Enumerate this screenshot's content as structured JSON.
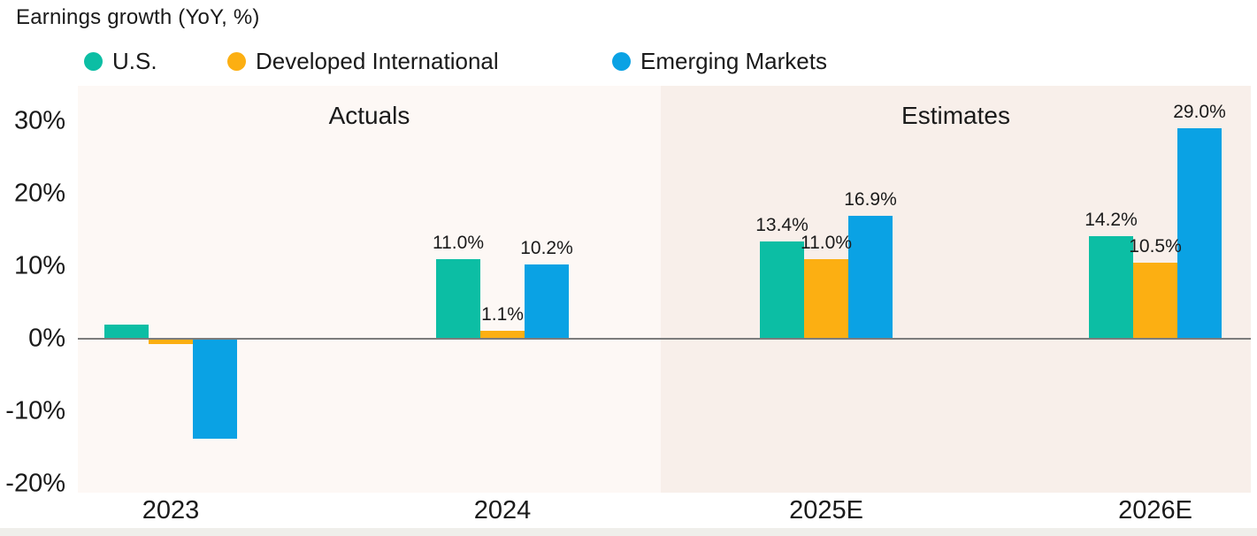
{
  "title": "Earnings growth (YoY, %)",
  "chart_data": {
    "type": "bar",
    "title": "Earnings growth (YoY, %)",
    "categories": [
      "2023",
      "2024",
      "2025E",
      "2026E"
    ],
    "series": [
      {
        "name": "U.S.",
        "color": "#0CBEA4",
        "values": [
          2.0,
          11.0,
          13.4,
          14.2
        ],
        "bar_labels": [
          "",
          "11.0%",
          "13.4%",
          "14.2%"
        ]
      },
      {
        "name": "Developed International",
        "color": "#FCAF12",
        "values": [
          -0.7,
          1.1,
          11.0,
          10.5
        ],
        "bar_labels": [
          "",
          "1.1%",
          "11.0%",
          "10.5%"
        ]
      },
      {
        "name": "Emerging Markets",
        "color": "#0AA2E4",
        "values": [
          -13.8,
          10.2,
          16.9,
          29.0
        ],
        "bar_labels": [
          "",
          "10.2%",
          "16.9%",
          "29.0%"
        ]
      }
    ],
    "sections": [
      {
        "label": "Actuals",
        "bg": "#FDF8F5"
      },
      {
        "label": "Estimates",
        "bg": "#F8EFEA"
      }
    ],
    "y_ticks": [
      {
        "label": "30%",
        "value": 30
      },
      {
        "label": "20%",
        "value": 20
      },
      {
        "label": "10%",
        "value": 10
      },
      {
        "label": "0%",
        "value": 0
      },
      {
        "label": "-10%",
        "value": -10
      },
      {
        "label": "-20%",
        "value": -20
      }
    ],
    "ylim": [
      -21.2,
      34.9
    ],
    "xlabel": "",
    "ylabel": "",
    "grid": false,
    "legend_position": "top"
  },
  "colors": {
    "axis_line": "#7C7C7C",
    "text": "#1A1A1A",
    "bottom_strip": "#EFEEEA",
    "background": "#FFFFFF"
  }
}
